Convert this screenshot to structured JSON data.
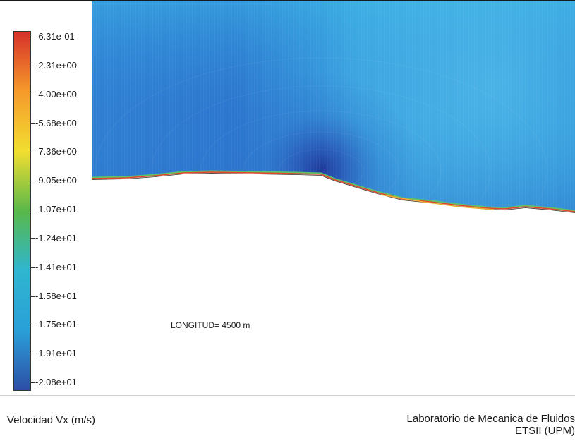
{
  "colorbar": {
    "labels": [
      "-6.31e-01",
      "-2.31e+00",
      "-4.00e+00",
      "-5.68e+00",
      "-7.36e+00",
      "-9.05e+00",
      "-1.07e+01",
      "-1.24e+01",
      "-1.41e+01",
      "-1.58e+01",
      "-1.75e+01",
      "-1.91e+01",
      "-2.08e+01"
    ],
    "colors": [
      "#d7302a",
      "#f59a2b",
      "#f2de30",
      "#59b84a",
      "#2fb6d0",
      "#2a9fd8",
      "#2d4ea6"
    ]
  },
  "plot": {
    "annotation": "LONGITUD= 4500 m"
  },
  "footer": {
    "variable_label": "Velocidad Vx (m/s)",
    "lab_name": "Laboratorio de Mecanica de Fluidos",
    "lab_org": "ETSII (UPM)"
  }
}
